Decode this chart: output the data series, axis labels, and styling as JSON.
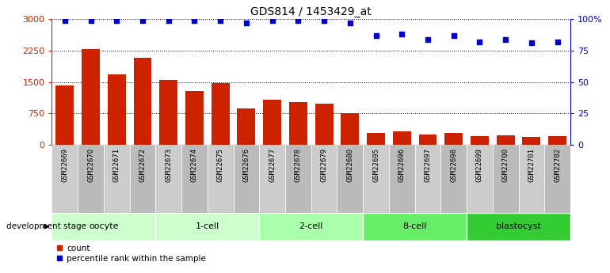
{
  "title": "GDS814 / 1453429_at",
  "samples": [
    "GSM22669",
    "GSM22670",
    "GSM22671",
    "GSM22672",
    "GSM22673",
    "GSM22674",
    "GSM22675",
    "GSM22676",
    "GSM22677",
    "GSM22678",
    "GSM22679",
    "GSM22680",
    "GSM22695",
    "GSM22696",
    "GSM22697",
    "GSM22698",
    "GSM22699",
    "GSM22700",
    "GSM22701",
    "GSM22702"
  ],
  "counts": [
    1420,
    2290,
    1680,
    2080,
    1540,
    1280,
    1470,
    870,
    1070,
    1020,
    980,
    760,
    290,
    310,
    250,
    280,
    200,
    220,
    180,
    210
  ],
  "percentiles": [
    99,
    99,
    99,
    99,
    99,
    99,
    99,
    97,
    99,
    99,
    99,
    97,
    87,
    88,
    84,
    87,
    82,
    84,
    81,
    82
  ],
  "bar_color": "#cc2200",
  "dot_color": "#0000cc",
  "left_ylim": [
    0,
    3000
  ],
  "right_ylim": [
    0,
    100
  ],
  "left_yticks": [
    0,
    750,
    1500,
    2250,
    3000
  ],
  "right_yticks": [
    0,
    25,
    50,
    75,
    100
  ],
  "right_yticklabels": [
    "0",
    "25",
    "50",
    "75",
    "100%"
  ],
  "bg_color": "#ffffff",
  "stage_labels": [
    "oocyte",
    "1-cell",
    "2-cell",
    "8-cell",
    "blastocyst"
  ],
  "stage_starts": [
    0,
    4,
    8,
    12,
    16
  ],
  "stage_ends": [
    4,
    8,
    12,
    16,
    20
  ],
  "stage_colors": [
    "#ccffcc",
    "#ccffcc",
    "#aaffaa",
    "#66ee66",
    "#33cc33"
  ],
  "xtick_bg": "#cccccc",
  "legend_count_label": "count",
  "legend_pct_label": "percentile rank within the sample",
  "dev_stage_label": "development stage"
}
